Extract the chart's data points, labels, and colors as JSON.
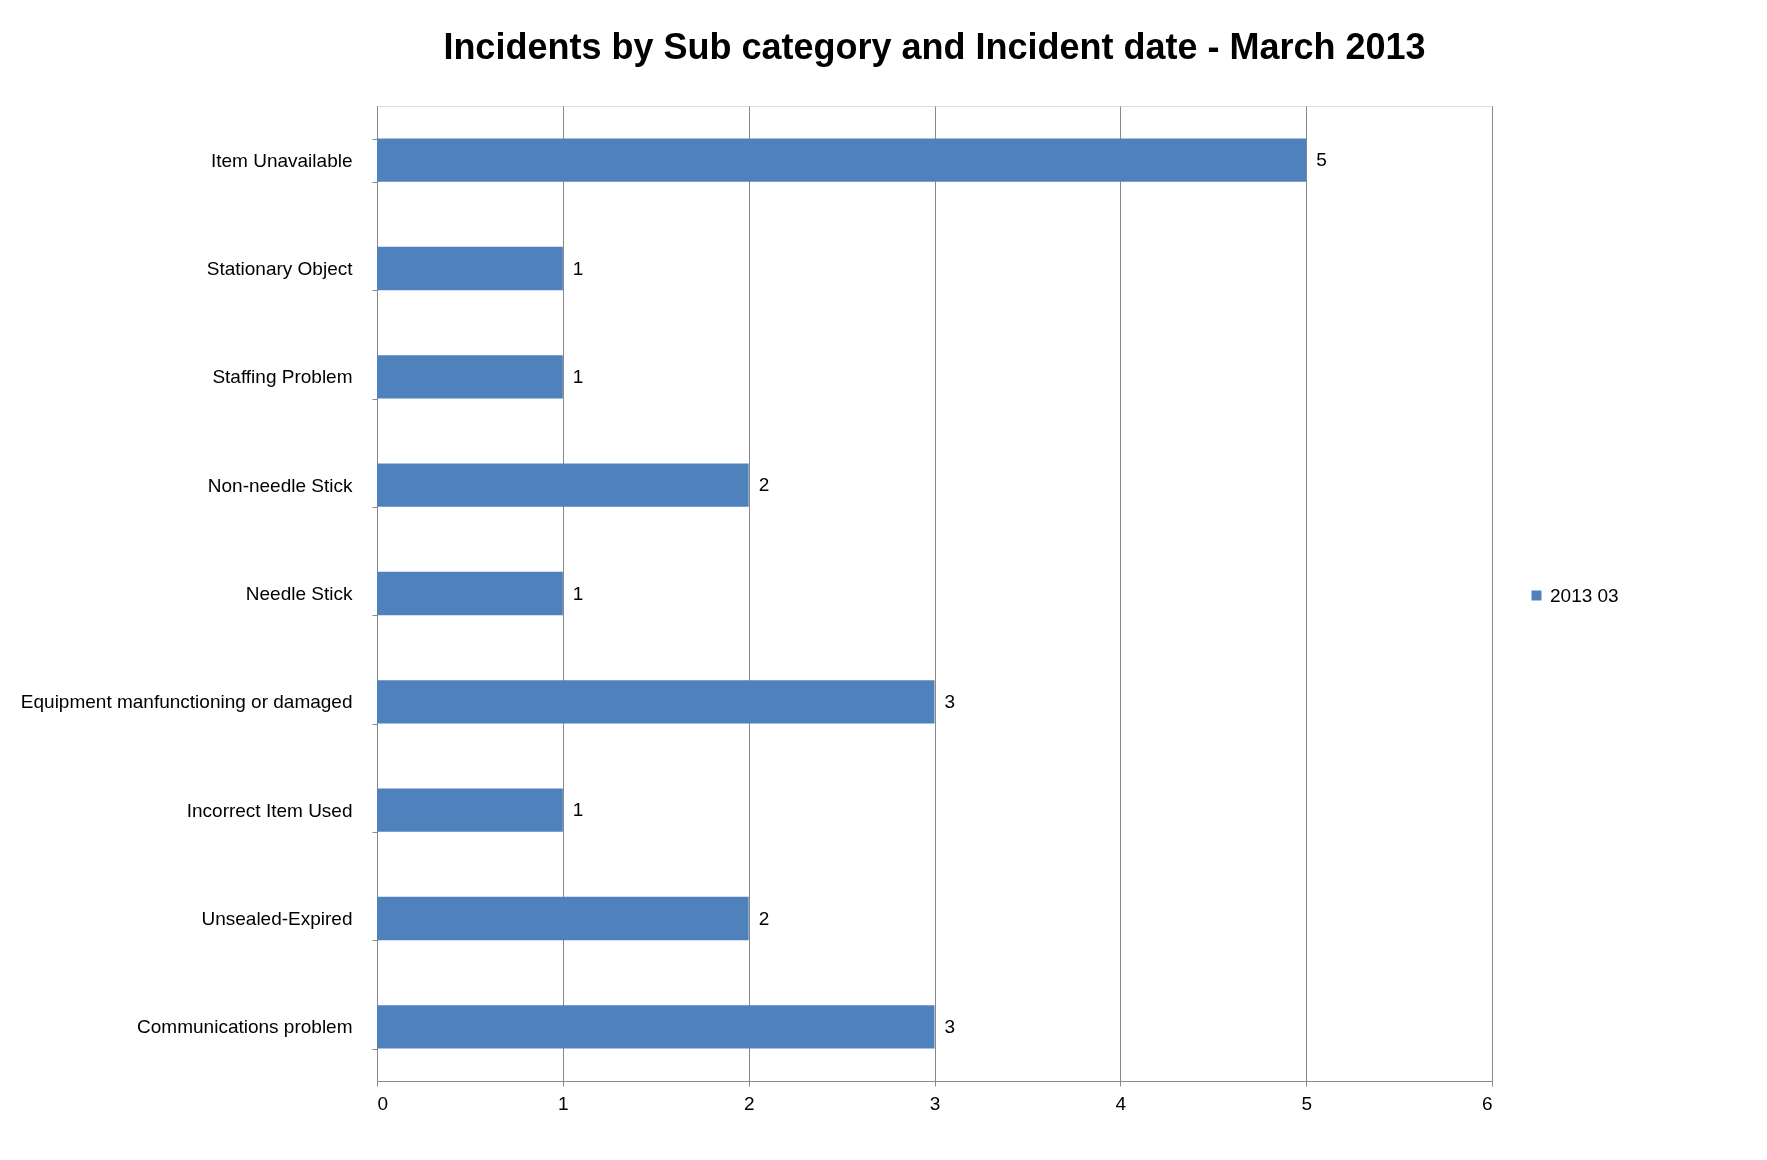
{
  "chart_data": {
    "type": "bar",
    "orientation": "horizontal",
    "title": "Incidents by Sub category and Incident date - March 2013",
    "categories": [
      "Item Unavailable",
      "Stationary Object",
      "Staffing Problem",
      "Non-needle Stick",
      "Needle Stick",
      "Equipment manfunctioning or damaged",
      "Incorrect Item Used",
      "Unsealed-Expired",
      "Communications problem"
    ],
    "series": [
      {
        "name": "2013 03",
        "color": "#4f81bd",
        "values": [
          5,
          1,
          1,
          2,
          1,
          3,
          1,
          2,
          3
        ]
      }
    ],
    "xlim": [
      0,
      6
    ],
    "xticks": [
      0,
      1,
      2,
      3,
      4,
      5,
      6
    ],
    "grid": "x",
    "legend": "right",
    "data_labels": true
  }
}
